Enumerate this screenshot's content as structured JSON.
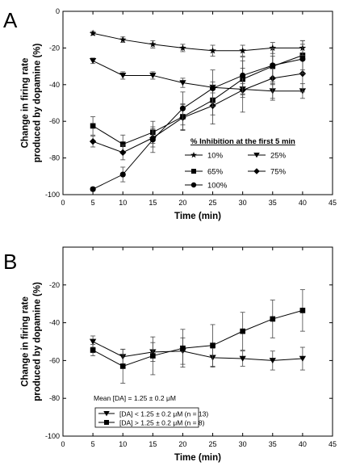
{
  "chart_data": [
    {
      "panel_label": "A",
      "type": "line",
      "xlabel": "Time (min)",
      "ylabel_lines": [
        "Change in firing rate",
        "produced by dopamine (%)"
      ],
      "xlim": [
        0,
        45
      ],
      "ylim": [
        -100,
        0
      ],
      "xticks": [
        0,
        5,
        10,
        15,
        20,
        25,
        30,
        35,
        40,
        45
      ],
      "yticks": [
        -100,
        -80,
        -60,
        -40,
        -20,
        0
      ],
      "legend_title": "% Inhibition at the first 5 min",
      "legend_placement": "lower-right",
      "x": [
        5,
        10,
        15,
        20,
        25,
        30,
        35,
        40
      ],
      "series": [
        {
          "name": "10%",
          "marker": "star",
          "values": [
            -12,
            -15.5,
            -18,
            -20,
            -21.5,
            -21.5,
            -20,
            -20
          ],
          "errors": [
            1,
            1.5,
            2,
            2,
            3,
            3,
            3,
            4
          ]
        },
        {
          "name": "25%",
          "marker": "triangle-down",
          "values": [
            -27,
            -35,
            -35,
            -39,
            -41.5,
            -42.5,
            -43.5,
            -43.5
          ],
          "errors": [
            1.5,
            2,
            2,
            2.5,
            3,
            3,
            4,
            4
          ]
        },
        {
          "name": "65%",
          "marker": "square",
          "values": [
            -62.5,
            -72.5,
            -66,
            -57.5,
            -48.5,
            -37,
            -30,
            -24
          ],
          "errors": [
            5,
            5,
            6,
            7,
            8,
            10,
            10,
            8
          ]
        },
        {
          "name": "75%",
          "marker": "diamond",
          "values": [
            -71,
            -77,
            -69,
            -58,
            -51.5,
            -43,
            -36.5,
            -34
          ],
          "errors": [
            3,
            4,
            5,
            7,
            10,
            12,
            12,
            10
          ]
        },
        {
          "name": "100%",
          "marker": "circle",
          "values": [
            -97,
            -89,
            -70,
            -53,
            -42,
            -35,
            -29.5,
            -26
          ],
          "errors": [
            1,
            4,
            7,
            9,
            10,
            10,
            9,
            8
          ]
        }
      ]
    },
    {
      "panel_label": "B",
      "type": "line",
      "xlabel": "Time (min)",
      "ylabel_lines": [
        "Change in firing rate",
        "produced by dopamine (%)"
      ],
      "xlim": [
        0,
        45
      ],
      "ylim": [
        -100,
        0
      ],
      "xticks": [
        0,
        5,
        10,
        15,
        20,
        25,
        30,
        35,
        40,
        45
      ],
      "yticks": [
        -100,
        -80,
        -60,
        -40,
        -20
      ],
      "legend_title": "Mean [DA] = 1.25 ± 0.2 μM",
      "legend_placement": "lower-left",
      "x": [
        5,
        10,
        15,
        20,
        25,
        30,
        35,
        40
      ],
      "series": [
        {
          "name": "[DA] < 1.25 ± 0.2 μM (n = 13)",
          "marker": "triangle-down",
          "values": [
            -50,
            -58,
            -55.5,
            -55,
            -58.5,
            -59,
            -60,
            -59
          ],
          "errors": [
            3,
            4,
            5,
            7,
            5,
            4,
            5,
            6
          ]
        },
        {
          "name": "[DA] > 1.25 ± 0.2 μM (n = 8)",
          "marker": "square",
          "values": [
            -54.5,
            -63,
            -57.5,
            -53.5,
            -52,
            -44.5,
            -38,
            -33.5
          ],
          "errors": [
            3,
            9,
            10,
            10,
            11,
            10,
            10,
            11
          ]
        }
      ]
    }
  ]
}
